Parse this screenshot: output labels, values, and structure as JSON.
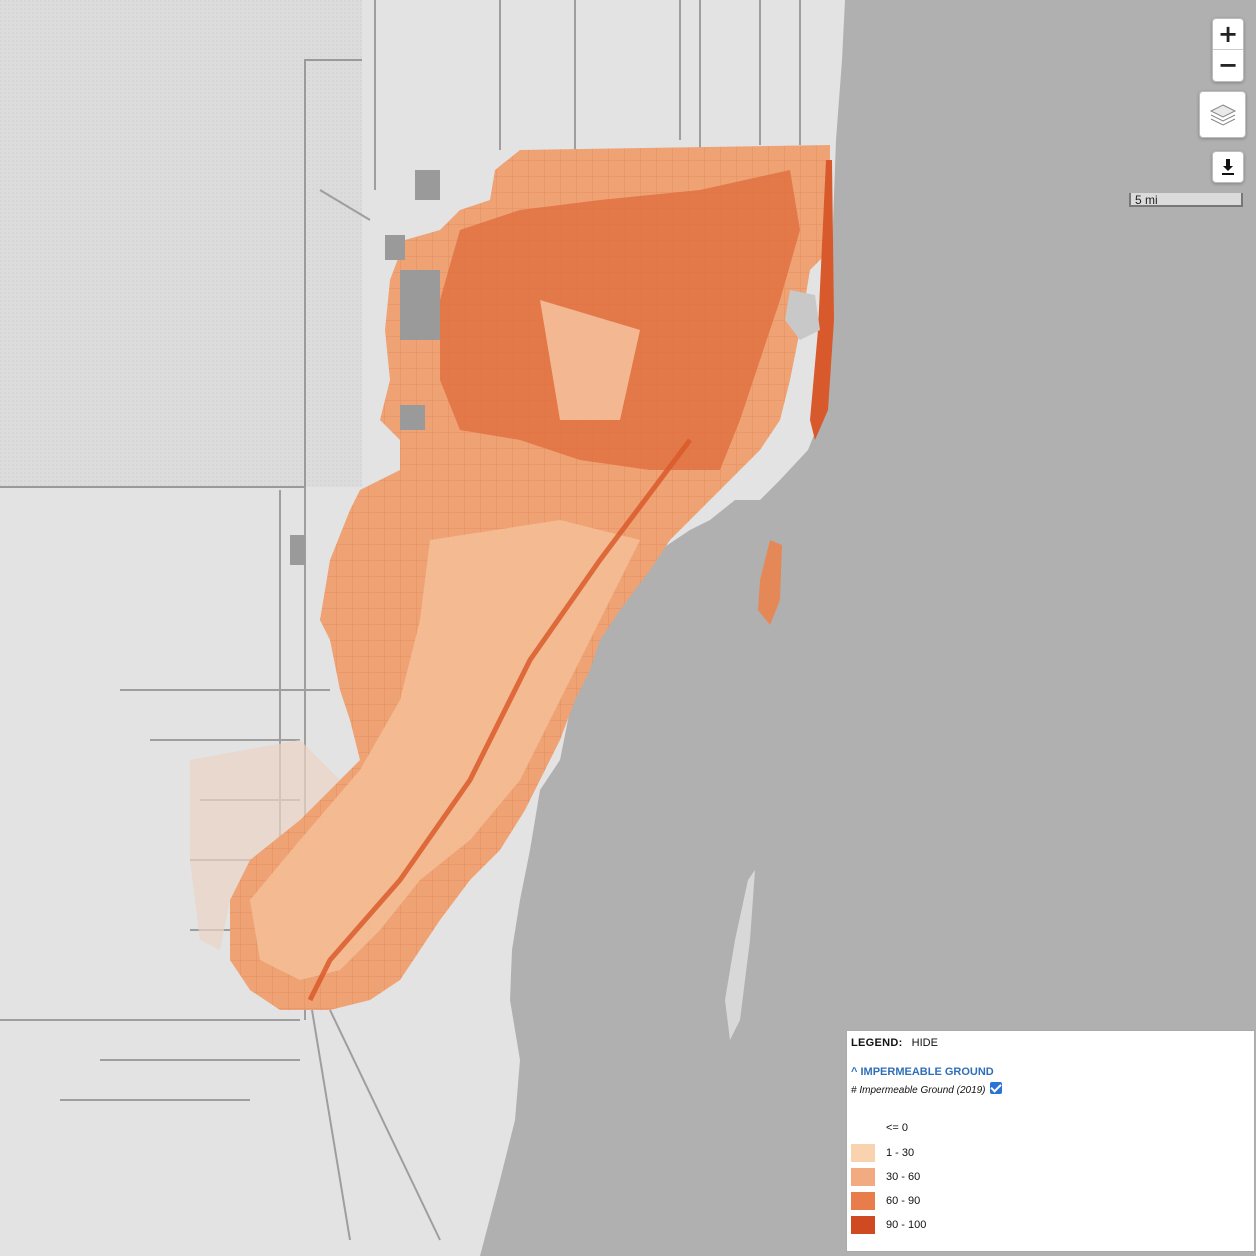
{
  "controls": {
    "zoom_in": "+",
    "zoom_out": "−",
    "layers_icon": "layers-icon",
    "download_icon": "download-icon"
  },
  "scale": {
    "label": "5 mi"
  },
  "legend": {
    "title": "LEGEND:",
    "hide": "HIDE",
    "layer_name": "IMPERMEABLE GROUND",
    "sublayer": "# Impermeable Ground (2019)",
    "sublayer_checked": true,
    "classes": [
      {
        "label": "<= 0",
        "color": "#ffffff"
      },
      {
        "label": "1 - 30",
        "color": "#f9d2b0"
      },
      {
        "label": "30 - 60",
        "color": "#f2ab80"
      },
      {
        "label": "60 - 90",
        "color": "#e97c4b"
      },
      {
        "label": "90 - 100",
        "color": "#cf4a20"
      }
    ]
  },
  "colors": {
    "water": "#b0b0b0",
    "land": "#e3e3e3",
    "conservation": "#d8d8d8",
    "roads": "#9e9e9e",
    "accent": "#2f6fb8"
  }
}
